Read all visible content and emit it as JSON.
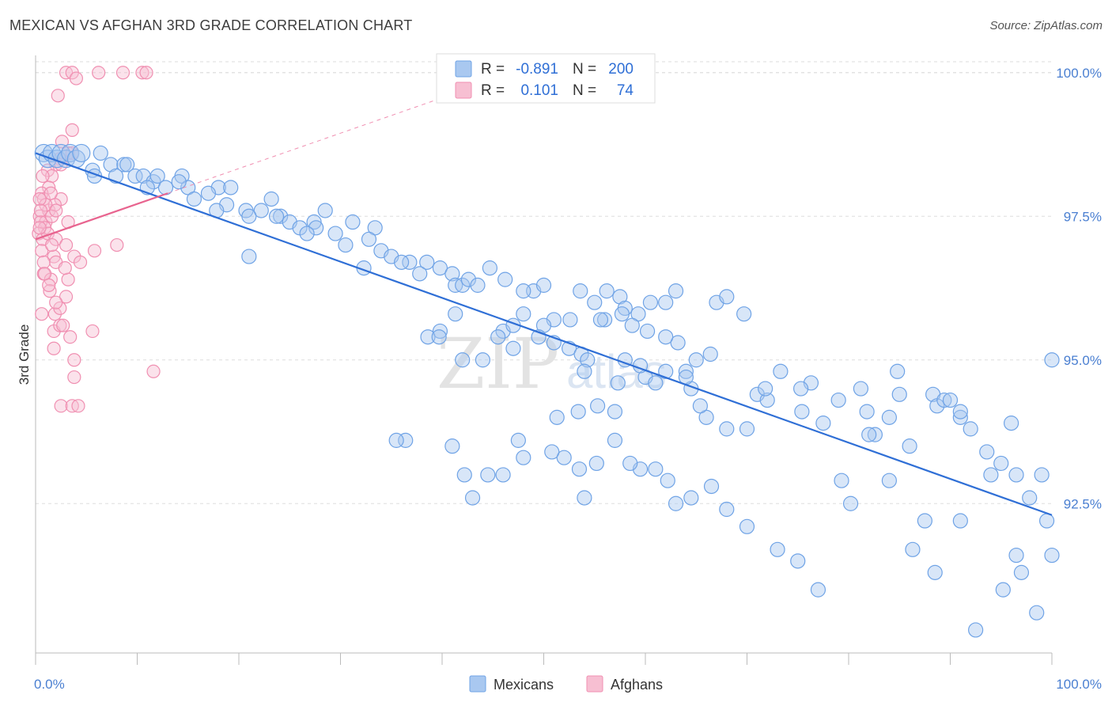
{
  "title": "MEXICAN VS AFGHAN 3RD GRADE CORRELATION CHART",
  "source": "Source: ZipAtlas.com",
  "colors": {
    "mexicans": "#6fa3e6",
    "mexicans_fill": "#a9c8f0",
    "mexicans_line": "#2f6fd6",
    "afghans": "#f08fb1",
    "afghans_fill": "#f7bfd2",
    "afghans_line": "#e8648f",
    "axis_tick": "#4a7fd1",
    "grid": "#dddddd"
  },
  "legend": {
    "rows": [
      {
        "r_label": "R =",
        "r_value": "-0.891",
        "n_label": "N =",
        "n_value": "200"
      },
      {
        "r_label": "R =",
        "r_value": "0.101",
        "n_label": "N =",
        "n_value": "74"
      }
    ]
  },
  "watermark": {
    "zip": "ZIP",
    "atlas": "atlas"
  },
  "chart_data": {
    "type": "scatter",
    "title": "MEXICAN VS AFGHAN 3RD GRADE CORRELATION CHART",
    "xlabel": "",
    "ylabel": "3rd Grade",
    "xlim": [
      0,
      100
    ],
    "ylim": [
      89.9,
      100.3
    ],
    "x_tick_labels": [
      "0.0%",
      "100.0%"
    ],
    "y_ticks": [
      92.5,
      95.0,
      97.5,
      100.0
    ],
    "y_tick_labels": [
      "92.5%",
      "95.0%",
      "97.5%",
      "100.0%"
    ],
    "grid": true,
    "legend_position": "bottom-center",
    "series": [
      {
        "name": "Mexicans",
        "r": -0.891,
        "n": 200,
        "trend": {
          "x": [
            0,
            100
          ],
          "y": [
            98.6,
            92.3
          ]
        },
        "points": [
          [
            0.8,
            98.6
          ],
          [
            1.2,
            98.5
          ],
          [
            1.6,
            98.6
          ],
          [
            2.1,
            98.5
          ],
          [
            2.5,
            98.6
          ],
          [
            3.0,
            98.5
          ],
          [
            3.4,
            98.6
          ],
          [
            4.0,
            98.5
          ],
          [
            4.5,
            98.6
          ],
          [
            6.4,
            98.6
          ],
          [
            5.6,
            98.3
          ],
          [
            7.4,
            98.4
          ],
          [
            8.7,
            98.4
          ],
          [
            9.0,
            98.4
          ],
          [
            5.8,
            98.2
          ],
          [
            7.9,
            98.2
          ],
          [
            9.8,
            98.2
          ],
          [
            10.6,
            98.2
          ],
          [
            11.6,
            98.1
          ],
          [
            12.0,
            98.2
          ],
          [
            12.8,
            98.0
          ],
          [
            14.4,
            98.2
          ],
          [
            15.0,
            98.0
          ],
          [
            14.1,
            98.1
          ],
          [
            11.0,
            98.0
          ],
          [
            18.0,
            98.0
          ],
          [
            19.2,
            98.0
          ],
          [
            17.0,
            97.9
          ],
          [
            15.6,
            97.8
          ],
          [
            18.8,
            97.7
          ],
          [
            20.7,
            97.6
          ],
          [
            23.2,
            97.8
          ],
          [
            17.8,
            97.6
          ],
          [
            22.2,
            97.6
          ],
          [
            21.0,
            97.5
          ],
          [
            24.1,
            97.5
          ],
          [
            25.0,
            97.4
          ],
          [
            23.7,
            97.5
          ],
          [
            28.5,
            97.6
          ],
          [
            26.0,
            97.3
          ],
          [
            27.4,
            97.4
          ],
          [
            27.6,
            97.3
          ],
          [
            29.5,
            97.2
          ],
          [
            31.2,
            97.4
          ],
          [
            33.4,
            97.3
          ],
          [
            26.7,
            97.2
          ],
          [
            32.8,
            97.1
          ],
          [
            30.5,
            97.0
          ],
          [
            34.0,
            96.9
          ],
          [
            35.0,
            96.8
          ],
          [
            21.0,
            96.8
          ],
          [
            38.5,
            96.7
          ],
          [
            36.8,
            96.7
          ],
          [
            36.0,
            96.7
          ],
          [
            32.3,
            96.6
          ],
          [
            37.8,
            96.5
          ],
          [
            39.8,
            96.6
          ],
          [
            41.0,
            96.5
          ],
          [
            41.3,
            96.3
          ],
          [
            42.0,
            96.3
          ],
          [
            42.6,
            96.4
          ],
          [
            43.5,
            96.3
          ],
          [
            46.2,
            96.4
          ],
          [
            44.7,
            96.6
          ],
          [
            49.0,
            96.2
          ],
          [
            48.0,
            96.2
          ],
          [
            50.0,
            96.3
          ],
          [
            53.6,
            96.2
          ],
          [
            55.0,
            96.0
          ],
          [
            56.2,
            96.2
          ],
          [
            57.5,
            96.1
          ],
          [
            60.5,
            96.0
          ],
          [
            62.0,
            96.0
          ],
          [
            63.0,
            96.2
          ],
          [
            67.0,
            96.0
          ],
          [
            68.0,
            96.1
          ],
          [
            69.7,
            95.8
          ],
          [
            59.3,
            95.8
          ],
          [
            58.0,
            95.9
          ],
          [
            57.7,
            95.8
          ],
          [
            56.0,
            95.7
          ],
          [
            55.6,
            95.7
          ],
          [
            52.6,
            95.7
          ],
          [
            51.0,
            95.7
          ],
          [
            48.0,
            95.8
          ],
          [
            50.0,
            95.6
          ],
          [
            46.0,
            95.5
          ],
          [
            39.8,
            95.5
          ],
          [
            38.6,
            95.4
          ],
          [
            42.0,
            95.0
          ],
          [
            44.0,
            95.0
          ],
          [
            45.5,
            95.4
          ],
          [
            47.0,
            95.6
          ],
          [
            49.5,
            95.4
          ],
          [
            51.0,
            95.3
          ],
          [
            52.5,
            95.2
          ],
          [
            53.7,
            95.1
          ],
          [
            54.3,
            95.0
          ],
          [
            54.0,
            94.8
          ],
          [
            58.0,
            95.0
          ],
          [
            60.0,
            94.7
          ],
          [
            62.0,
            94.8
          ],
          [
            64.0,
            94.8
          ],
          [
            65.0,
            95.0
          ],
          [
            66.4,
            95.1
          ],
          [
            64.5,
            94.5
          ],
          [
            61.0,
            94.6
          ],
          [
            59.5,
            94.9
          ],
          [
            57.3,
            94.6
          ],
          [
            55.3,
            94.2
          ],
          [
            57.0,
            94.1
          ],
          [
            53.4,
            94.1
          ],
          [
            51.3,
            94.0
          ],
          [
            66.0,
            94.0
          ],
          [
            68.0,
            93.8
          ],
          [
            70.0,
            93.8
          ],
          [
            71.0,
            94.4
          ],
          [
            72.0,
            94.3
          ],
          [
            73.3,
            94.8
          ],
          [
            76.3,
            94.6
          ],
          [
            75.3,
            94.5
          ],
          [
            77.5,
            93.9
          ],
          [
            79.0,
            94.3
          ],
          [
            81.2,
            94.5
          ],
          [
            81.8,
            94.1
          ],
          [
            82.6,
            93.7
          ],
          [
            84.0,
            94.0
          ],
          [
            84.8,
            94.8
          ],
          [
            85.0,
            94.4
          ],
          [
            86.0,
            93.5
          ],
          [
            88.3,
            94.4
          ],
          [
            88.7,
            94.2
          ],
          [
            89.4,
            94.3
          ],
          [
            90.0,
            94.3
          ],
          [
            91.0,
            94.0
          ],
          [
            92.0,
            93.8
          ],
          [
            93.6,
            93.4
          ],
          [
            94.0,
            93.0
          ],
          [
            95.0,
            93.2
          ],
          [
            96.5,
            93.0
          ],
          [
            97.8,
            92.6
          ],
          [
            99.0,
            93.0
          ],
          [
            99.5,
            92.2
          ],
          [
            100.0,
            91.6
          ],
          [
            98.5,
            90.6
          ],
          [
            97.0,
            91.3
          ],
          [
            96.5,
            91.6
          ],
          [
            95.2,
            91.0
          ],
          [
            92.5,
            90.3
          ],
          [
            91.0,
            92.2
          ],
          [
            88.5,
            91.3
          ],
          [
            87.5,
            92.2
          ],
          [
            86.3,
            91.7
          ],
          [
            84.0,
            92.9
          ],
          [
            82.0,
            93.7
          ],
          [
            80.2,
            92.5
          ],
          [
            79.3,
            92.9
          ],
          [
            77.0,
            91.0
          ],
          [
            75.0,
            91.5
          ],
          [
            73.0,
            91.7
          ],
          [
            70.0,
            92.1
          ],
          [
            68.0,
            92.4
          ],
          [
            66.5,
            92.8
          ],
          [
            64.5,
            92.6
          ],
          [
            63.0,
            92.5
          ],
          [
            62.2,
            92.9
          ],
          [
            61.0,
            93.1
          ],
          [
            59.5,
            93.1
          ],
          [
            58.5,
            93.2
          ],
          [
            57.0,
            93.6
          ],
          [
            55.2,
            93.2
          ],
          [
            54.0,
            92.6
          ],
          [
            53.5,
            93.1
          ],
          [
            52.0,
            93.3
          ],
          [
            50.8,
            93.4
          ],
          [
            48.0,
            93.3
          ],
          [
            47.5,
            93.6
          ],
          [
            46.0,
            93.0
          ],
          [
            44.5,
            93.0
          ],
          [
            43.0,
            92.6
          ],
          [
            42.2,
            93.0
          ],
          [
            41.0,
            93.5
          ],
          [
            36.4,
            93.6
          ],
          [
            35.5,
            93.6
          ],
          [
            39.7,
            95.4
          ],
          [
            41.3,
            95.8
          ],
          [
            47.0,
            95.2
          ],
          [
            91.0,
            94.1
          ],
          [
            96.0,
            93.9
          ],
          [
            71.8,
            94.5
          ],
          [
            75.4,
            94.1
          ],
          [
            65.4,
            94.2
          ],
          [
            64.0,
            94.7
          ],
          [
            63.2,
            95.3
          ],
          [
            62.0,
            95.4
          ],
          [
            60.2,
            95.5
          ],
          [
            58.7,
            95.6
          ],
          [
            100.0,
            95.0
          ]
        ]
      },
      {
        "name": "Afghans",
        "r": 0.101,
        "n": 74,
        "trend": {
          "x": [
            0,
            13
          ],
          "y": [
            97.1,
            97.9
          ]
        },
        "points": [
          [
            3.0,
            100.0
          ],
          [
            3.6,
            100.0
          ],
          [
            4.0,
            99.9
          ],
          [
            6.2,
            100.0
          ],
          [
            8.6,
            100.0
          ],
          [
            10.5,
            100.0
          ],
          [
            10.9,
            100.0
          ],
          [
            2.2,
            99.6
          ],
          [
            3.6,
            99.0
          ],
          [
            2.6,
            98.8
          ],
          [
            3.2,
            98.6
          ],
          [
            2.4,
            98.5
          ],
          [
            3.6,
            98.6
          ],
          [
            2.0,
            98.4
          ],
          [
            1.2,
            98.3
          ],
          [
            1.6,
            98.2
          ],
          [
            2.5,
            98.4
          ],
          [
            1.3,
            98.0
          ],
          [
            0.6,
            97.9
          ],
          [
            2.5,
            97.8
          ],
          [
            0.8,
            97.8
          ],
          [
            0.4,
            97.5
          ],
          [
            1.0,
            97.4
          ],
          [
            1.3,
            97.6
          ],
          [
            1.9,
            97.7
          ],
          [
            0.5,
            97.4
          ],
          [
            0.9,
            97.3
          ],
          [
            1.6,
            97.5
          ],
          [
            3.2,
            97.4
          ],
          [
            0.3,
            97.2
          ],
          [
            0.7,
            97.1
          ],
          [
            1.2,
            97.2
          ],
          [
            2.0,
            97.1
          ],
          [
            3.0,
            97.0
          ],
          [
            0.6,
            96.9
          ],
          [
            1.8,
            96.8
          ],
          [
            3.8,
            96.8
          ],
          [
            5.8,
            96.9
          ],
          [
            8.0,
            97.0
          ],
          [
            0.8,
            96.7
          ],
          [
            2.0,
            96.7
          ],
          [
            4.4,
            96.7
          ],
          [
            0.8,
            96.5
          ],
          [
            1.5,
            96.4
          ],
          [
            3.2,
            96.4
          ],
          [
            1.4,
            96.2
          ],
          [
            0.6,
            95.8
          ],
          [
            1.9,
            95.8
          ],
          [
            2.4,
            95.9
          ],
          [
            3.0,
            96.1
          ],
          [
            1.8,
            95.5
          ],
          [
            2.4,
            95.6
          ],
          [
            3.4,
            95.4
          ],
          [
            5.6,
            95.5
          ],
          [
            1.8,
            95.2
          ],
          [
            3.8,
            95.0
          ],
          [
            3.8,
            94.7
          ],
          [
            11.6,
            94.8
          ],
          [
            2.5,
            94.2
          ],
          [
            3.6,
            94.2
          ],
          [
            4.2,
            94.2
          ],
          [
            1.0,
            97.7
          ],
          [
            1.5,
            97.9
          ],
          [
            2.0,
            97.6
          ],
          [
            0.7,
            98.2
          ],
          [
            0.4,
            97.8
          ],
          [
            0.4,
            97.3
          ],
          [
            0.9,
            96.5
          ],
          [
            1.3,
            96.3
          ],
          [
            2.0,
            96.0
          ],
          [
            2.7,
            95.6
          ],
          [
            1.6,
            97.0
          ],
          [
            2.9,
            96.6
          ],
          [
            0.5,
            97.6
          ]
        ]
      }
    ]
  }
}
